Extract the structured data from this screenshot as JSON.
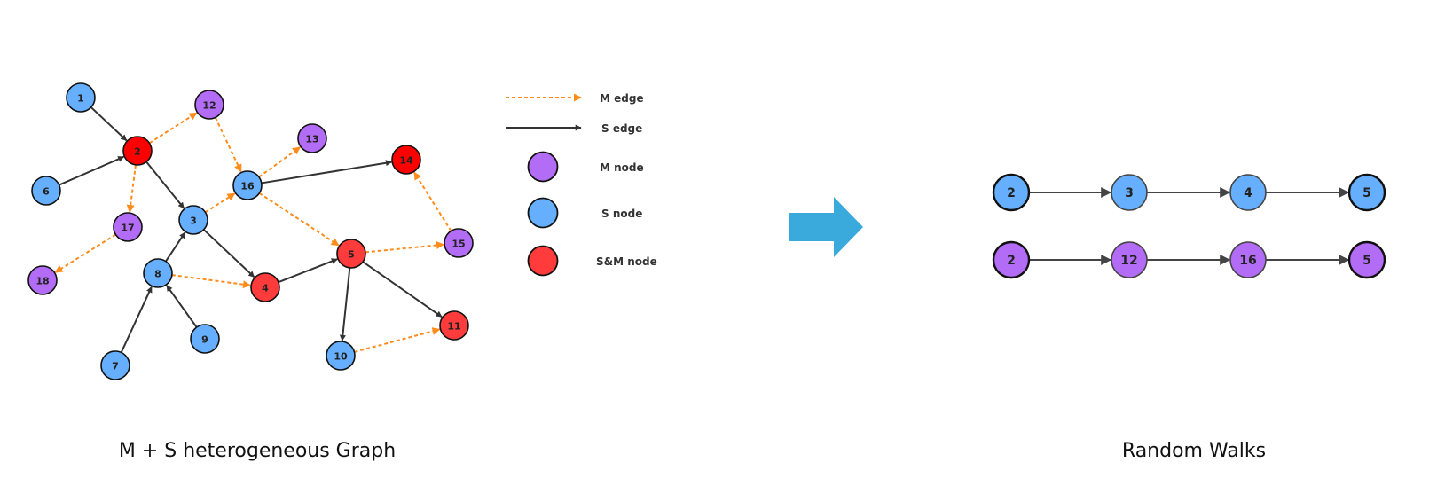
{
  "colors": {
    "m_node": "#b36cf5",
    "s_node": "#66afff",
    "sm_node": "#ff3b3b",
    "sm_node_dark": "#ff0000",
    "m_edge": "#ff8c1a",
    "s_edge": "#333333",
    "arrow": "#3aaadd"
  },
  "graph": {
    "caption": "M + S heterogeneous Graph",
    "nodes": [
      {
        "id": "1",
        "type": "s"
      },
      {
        "id": "2",
        "type": "sm_dark"
      },
      {
        "id": "3",
        "type": "s"
      },
      {
        "id": "4",
        "type": "sm"
      },
      {
        "id": "5",
        "type": "sm"
      },
      {
        "id": "6",
        "type": "s"
      },
      {
        "id": "7",
        "type": "s"
      },
      {
        "id": "8",
        "type": "s"
      },
      {
        "id": "9",
        "type": "s"
      },
      {
        "id": "10",
        "type": "s"
      },
      {
        "id": "11",
        "type": "sm"
      },
      {
        "id": "12",
        "type": "m"
      },
      {
        "id": "13",
        "type": "m"
      },
      {
        "id": "14",
        "type": "sm_dark"
      },
      {
        "id": "15",
        "type": "m"
      },
      {
        "id": "16",
        "type": "s"
      },
      {
        "id": "17",
        "type": "m"
      },
      {
        "id": "18",
        "type": "m"
      }
    ],
    "edges": [
      {
        "from": "1",
        "to": "2",
        "type": "s"
      },
      {
        "from": "6",
        "to": "2",
        "type": "s"
      },
      {
        "from": "2",
        "to": "3",
        "type": "s"
      },
      {
        "from": "2",
        "to": "12",
        "type": "m"
      },
      {
        "from": "2",
        "to": "17",
        "type": "m"
      },
      {
        "from": "17",
        "to": "18",
        "type": "m"
      },
      {
        "from": "12",
        "to": "16",
        "type": "m"
      },
      {
        "from": "3",
        "to": "16",
        "type": "m"
      },
      {
        "from": "16",
        "to": "13",
        "type": "m"
      },
      {
        "from": "16",
        "to": "14",
        "type": "s"
      },
      {
        "from": "16",
        "to": "5",
        "type": "m"
      },
      {
        "from": "3",
        "to": "4",
        "type": "s"
      },
      {
        "from": "8",
        "to": "3",
        "type": "s"
      },
      {
        "from": "8",
        "to": "4",
        "type": "m"
      },
      {
        "from": "7",
        "to": "8",
        "type": "s"
      },
      {
        "from": "9",
        "to": "8",
        "type": "s"
      },
      {
        "from": "4",
        "to": "5",
        "type": "s"
      },
      {
        "from": "5",
        "to": "15",
        "type": "m"
      },
      {
        "from": "15",
        "to": "14",
        "type": "m"
      },
      {
        "from": "5",
        "to": "10",
        "type": "s"
      },
      {
        "from": "5",
        "to": "11",
        "type": "s"
      },
      {
        "from": "10",
        "to": "11",
        "type": "m"
      }
    ]
  },
  "legend": {
    "m_edge": "M edge",
    "s_edge": "S edge",
    "m_node": "M node",
    "s_node": "S node",
    "sm_node": "S&M node"
  },
  "walks": {
    "caption": "Random Walks",
    "rows": [
      {
        "type": "s",
        "nodes": [
          "2",
          "3",
          "4",
          "5"
        ]
      },
      {
        "type": "m",
        "nodes": [
          "2",
          "12",
          "16",
          "5"
        ]
      }
    ]
  }
}
